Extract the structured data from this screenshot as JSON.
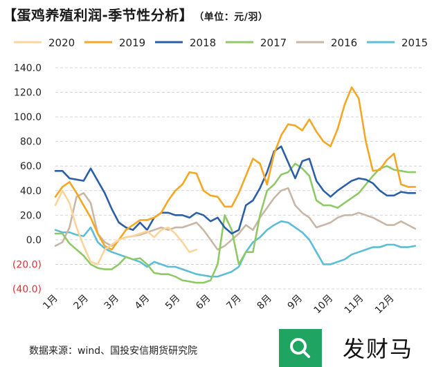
{
  "header": {
    "title": "【蛋鸡养殖利润-季节性分析】",
    "unit": "（单位：元/羽）"
  },
  "footer": {
    "source": "数据来源：wind、国投安信期货研究院"
  },
  "watermark": {
    "text": "发财马",
    "icon": "search-icon",
    "brand_color": "#1fa561"
  },
  "chart_data": {
    "type": "line",
    "ylim": [
      -40,
      140
    ],
    "yticks": [
      -40,
      -20,
      0,
      20,
      40,
      60,
      80,
      100,
      120,
      140
    ],
    "ytick_labels": [
      "(40.0)",
      "(20.0)",
      "0.0",
      "20.0",
      "40.0",
      "60.0",
      "80.0",
      "100.0",
      "120.0",
      "140.0"
    ],
    "negative_label_color": "#e03030",
    "xlim": [
      0,
      52
    ],
    "x_categories": [
      "1月",
      "2月",
      "3月",
      "4月",
      "5月",
      "6月",
      "7月",
      "8月",
      "9月",
      "10月",
      "11月",
      "12月"
    ],
    "legend_position": "top",
    "grid": "horizontal dashed",
    "series": [
      {
        "name": "2020",
        "color": "#fcd49a",
        "x": [
          0,
          1,
          2,
          3,
          4,
          5,
          6,
          7,
          8,
          9,
          10,
          11,
          12,
          13,
          14,
          15,
          16,
          17,
          18,
          19,
          20
        ],
        "y": [
          28,
          40,
          30,
          10,
          -5,
          -18,
          -20,
          -8,
          -4,
          0,
          2,
          3,
          5,
          7,
          2,
          8,
          10,
          5,
          -2,
          -10,
          -8
        ]
      },
      {
        "name": "2019",
        "color": "#f5a623",
        "x": [
          0,
          1,
          2,
          3,
          4,
          5,
          6,
          7,
          8,
          9,
          10,
          11,
          12,
          13,
          14,
          15,
          16,
          17,
          18,
          19,
          20,
          21,
          22,
          23,
          24,
          25,
          26,
          27,
          28,
          29,
          30,
          31,
          32,
          33,
          34,
          35,
          36,
          37,
          38,
          39,
          40,
          41,
          42,
          43,
          44,
          45,
          46,
          47,
          48,
          49,
          50,
          51
        ],
        "y": [
          35,
          43,
          47,
          38,
          28,
          18,
          5,
          -5,
          -8,
          0,
          8,
          12,
          16,
          16,
          18,
          22,
          32,
          40,
          45,
          55,
          54,
          40,
          36,
          35,
          27,
          27,
          38,
          52,
          66,
          62,
          45,
          70,
          85,
          94,
          93,
          89,
          98,
          88,
          80,
          76,
          90,
          110,
          124,
          115,
          80,
          56,
          57,
          65,
          70,
          45,
          43,
          43
        ]
      },
      {
        "name": "2018",
        "color": "#2a5fa8",
        "x": [
          0,
          1,
          2,
          3,
          4,
          5,
          6,
          7,
          8,
          9,
          10,
          11,
          12,
          13,
          14,
          15,
          16,
          17,
          18,
          19,
          20,
          21,
          22,
          23,
          24,
          25,
          26,
          27,
          28,
          29,
          30,
          31,
          32,
          33,
          34,
          35,
          36,
          37,
          38,
          39,
          40,
          41,
          42,
          43,
          44,
          45,
          46,
          47,
          48,
          49,
          50,
          51
        ],
        "y": [
          56,
          56,
          50,
          49,
          48,
          58,
          48,
          38,
          25,
          14,
          10,
          8,
          14,
          8,
          18,
          22,
          22,
          20,
          20,
          18,
          22,
          20,
          15,
          18,
          10,
          5,
          8,
          28,
          32,
          42,
          55,
          72,
          76,
          63,
          50,
          64,
          66,
          48,
          40,
          35,
          40,
          44,
          48,
          50,
          49,
          46,
          40,
          36,
          36,
          39,
          38,
          38
        ]
      },
      {
        "name": "2017",
        "color": "#8fc965",
        "x": [
          0,
          1,
          2,
          3,
          4,
          5,
          6,
          7,
          8,
          9,
          10,
          11,
          12,
          13,
          14,
          15,
          16,
          17,
          18,
          19,
          20,
          21,
          22,
          23,
          24,
          25,
          26,
          27,
          28,
          29,
          30,
          31,
          32,
          33,
          34,
          35,
          36,
          37,
          38,
          39,
          40,
          41,
          42,
          43,
          44,
          45,
          46,
          47,
          48,
          49,
          50,
          51
        ],
        "y": [
          5,
          5,
          -3,
          -8,
          -13,
          -20,
          -23,
          -24,
          -24,
          -20,
          -14,
          -16,
          -15,
          -20,
          -27,
          -28,
          -28,
          -30,
          -33,
          -34,
          -35,
          -35,
          -33,
          -20,
          20,
          8,
          -20,
          -10,
          -10,
          20,
          40,
          45,
          53,
          55,
          62,
          58,
          52,
          32,
          28,
          28,
          26,
          30,
          34,
          38,
          45,
          52,
          58,
          60,
          57,
          56,
          55,
          55
        ]
      },
      {
        "name": "2016",
        "color": "#c8b6a6",
        "x": [
          0,
          1,
          2,
          3,
          4,
          5,
          6,
          7,
          8,
          9,
          10,
          11,
          12,
          13,
          14,
          15,
          16,
          17,
          18,
          19,
          20,
          21,
          22,
          23,
          24,
          25,
          26,
          27,
          28,
          29,
          30,
          31,
          32,
          33,
          34,
          35,
          36,
          37,
          38,
          39,
          40,
          41,
          42,
          43,
          44,
          45,
          46,
          47,
          48,
          49,
          50,
          51
        ],
        "y": [
          -5,
          -2,
          10,
          35,
          38,
          30,
          5,
          -2,
          -5,
          0,
          2,
          3,
          4,
          6,
          8,
          10,
          8,
          10,
          10,
          12,
          14,
          8,
          0,
          -8,
          -5,
          0,
          5,
          12,
          8,
          18,
          26,
          34,
          40,
          42,
          28,
          22,
          18,
          10,
          12,
          14,
          18,
          20,
          20,
          22,
          20,
          18,
          15,
          12,
          12,
          15,
          12,
          9
        ]
      },
      {
        "name": "2015",
        "color": "#5bbdd8",
        "x": [
          0,
          1,
          2,
          3,
          4,
          5,
          6,
          7,
          8,
          9,
          10,
          11,
          12,
          13,
          14,
          15,
          16,
          17,
          18,
          19,
          20,
          21,
          22,
          23,
          24,
          25,
          26,
          27,
          28,
          29,
          30,
          31,
          32,
          33,
          34,
          35,
          36,
          37,
          38,
          39,
          40,
          41,
          42,
          43,
          44,
          45,
          46,
          47,
          48,
          49,
          50,
          51
        ],
        "y": [
          8,
          6,
          6,
          4,
          3,
          10,
          -2,
          -7,
          -10,
          -12,
          -14,
          -16,
          -18,
          -22,
          -18,
          -20,
          -22,
          -22,
          -24,
          -26,
          -28,
          -29,
          -30,
          -30,
          -28,
          -26,
          -22,
          -10,
          -2,
          2,
          8,
          12,
          15,
          14,
          10,
          6,
          0,
          -10,
          -20,
          -20,
          -18,
          -16,
          -12,
          -10,
          -8,
          -6,
          -6,
          -4,
          -4,
          -6,
          -6,
          -5
        ]
      }
    ]
  }
}
